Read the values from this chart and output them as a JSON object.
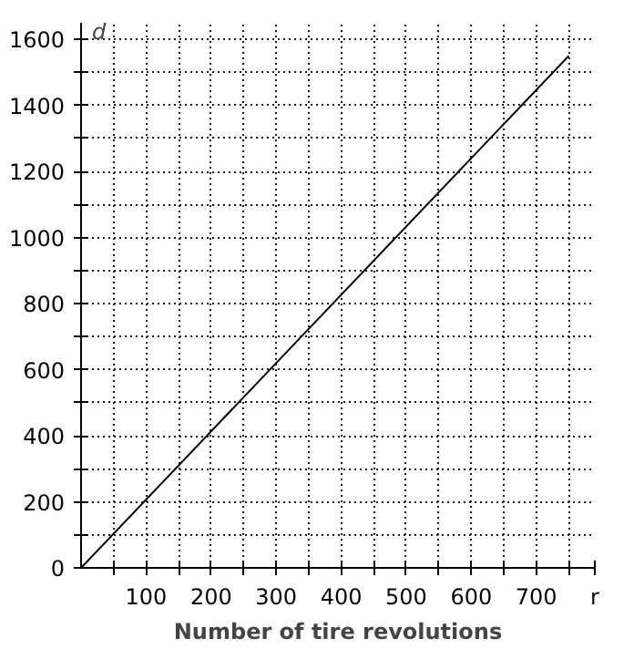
{
  "chart_data": {
    "type": "line",
    "xlabel": "Number of tire revolutions",
    "ylabel": "d",
    "annotations": [
      "r"
    ],
    "x": [
      0,
      750
    ],
    "series": [
      {
        "color": "#000000",
        "values": [
          0,
          1550
        ]
      }
    ],
    "xlim": [
      0,
      790
    ],
    "ylim": [
      0,
      1650
    ],
    "xticks": [
      {
        "value": 50,
        "label": null
      },
      100,
      {
        "value": 150,
        "label": null
      },
      200,
      {
        "value": 250,
        "label": null
      },
      300,
      {
        "value": 350,
        "label": null
      },
      400,
      {
        "value": 450,
        "label": null
      },
      500,
      {
        "value": 550,
        "label": null
      },
      600,
      {
        "value": 650,
        "label": null
      },
      700,
      {
        "value": 750,
        "label": null
      }
    ],
    "yticks": [
      0,
      {
        "value": 100,
        "label": null
      },
      200,
      {
        "value": 300,
        "label": null
      },
      400,
      {
        "value": 500,
        "label": null
      },
      600,
      {
        "value": 700,
        "label": null
      },
      800,
      {
        "value": 900,
        "label": null
      },
      1000,
      {
        "value": 1100,
        "label": null
      },
      1200,
      {
        "value": 1300,
        "label": null
      },
      1400,
      {
        "value": 1500,
        "label": null
      },
      1600
    ],
    "grid": true,
    "marker": "none",
    "line_style": "solid"
  }
}
